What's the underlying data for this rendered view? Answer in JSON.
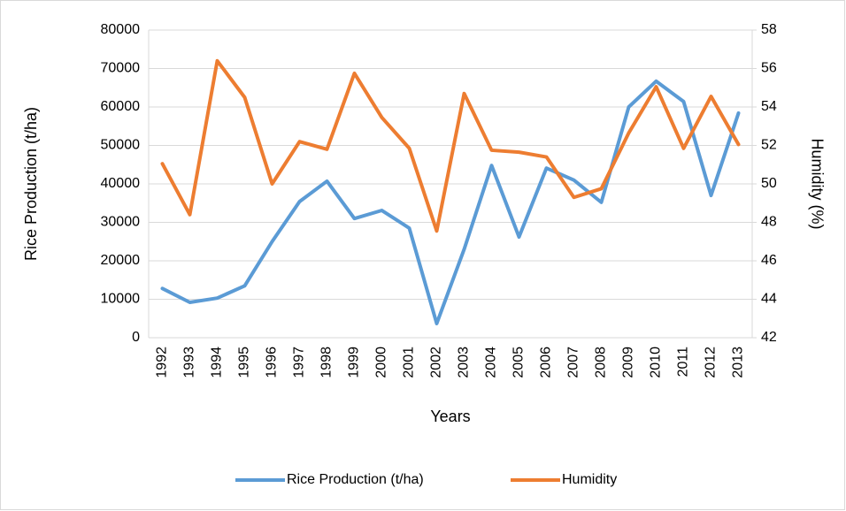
{
  "chart_data": {
    "type": "line",
    "x_label": "Years",
    "y_label": "Rice Production (t/ha)",
    "y2_label": "Humidity (%)",
    "categories": [
      "1992",
      "1993",
      "1994",
      "1995",
      "1996",
      "1997",
      "1998",
      "1999",
      "2000",
      "2001",
      "2002",
      "2003",
      "2004",
      "2005",
      "2006",
      "2007",
      "2008",
      "2009",
      "2010",
      "2011",
      "2012",
      "2013"
    ],
    "series": [
      {
        "name": "Rice Production (t/ha)",
        "color": "#5b9bd5",
        "values": [
          12800,
          9200,
          10300,
          13500,
          25000,
          35400,
          40700,
          31000,
          33100,
          28500,
          3700,
          23000,
          44800,
          26200,
          44100,
          41000,
          35200,
          60000,
          66700,
          61400,
          37000,
          58400
        ]
      },
      {
        "name": "Humidity",
        "color": "#ed7d31",
        "axis": "y2",
        "values": [
          51.05,
          48.4,
          56.4,
          54.5,
          50.0,
          52.2,
          51.8,
          55.75,
          53.45,
          51.85,
          47.55,
          54.7,
          51.75,
          51.65,
          51.4,
          49.3,
          49.75,
          52.65,
          55.05,
          51.85,
          54.55,
          52.05
        ]
      }
    ],
    "ylim": [
      0,
      80000
    ],
    "yticks": [
      0,
      10000,
      20000,
      30000,
      40000,
      50000,
      60000,
      70000,
      80000
    ],
    "y2lim": [
      42,
      58
    ],
    "y2ticks": [
      42,
      44,
      46,
      48,
      50,
      52,
      54,
      56,
      58
    ],
    "grid": true,
    "legend": "bottom"
  }
}
